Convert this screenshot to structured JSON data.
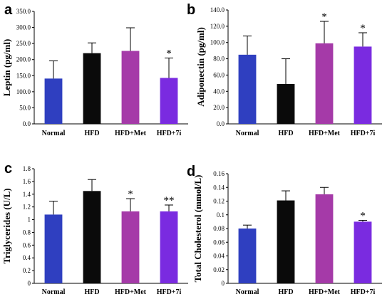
{
  "colors": {
    "Normal": "#2f3fc0",
    "HFD": "#0a0a0a",
    "HFD+Met": "#a53aa8",
    "HFD+7i": "#7a2be0"
  },
  "chart_data": [
    {
      "panel": "a",
      "type": "bar",
      "ylabel": "Leptin (pg/ml)",
      "categories": [
        "Normal",
        "HFD",
        "HFD+Met",
        "HFD+7i"
      ],
      "values": [
        141,
        220,
        227,
        143
      ],
      "errors": [
        55,
        32,
        72,
        62
      ],
      "significance": [
        "",
        "",
        "",
        "*"
      ],
      "ylim": [
        0,
        350
      ],
      "yticks": [
        "0.0",
        "50.0",
        "100.0",
        "150.0",
        "200.0",
        "250.0",
        "300.0",
        "350.0"
      ]
    },
    {
      "panel": "b",
      "type": "bar",
      "ylabel": "Adiponectin (pg/ml)",
      "categories": [
        "Normal",
        "HFD",
        "HFD+Met",
        "HFD+7i"
      ],
      "values": [
        85,
        49,
        99,
        95
      ],
      "errors": [
        23,
        31,
        27,
        17
      ],
      "significance": [
        "",
        "",
        "*",
        "*"
      ],
      "ylim": [
        0,
        140
      ],
      "yticks": [
        "0.0",
        "20.0",
        "40.0",
        "60.0",
        "80.0",
        "100.0",
        "120.0",
        "140.0"
      ]
    },
    {
      "panel": "c",
      "type": "bar",
      "ylabel": "Triglycerides (U/L)",
      "categories": [
        "Normal",
        "HFD",
        "HFD+Met",
        "HFD+7i"
      ],
      "values": [
        1.08,
        1.45,
        1.13,
        1.13
      ],
      "errors": [
        0.21,
        0.18,
        0.2,
        0.1
      ],
      "significance": [
        "",
        "",
        "*",
        "**"
      ],
      "ylim": [
        0,
        1.8
      ],
      "yticks": [
        "0",
        "0.2",
        "0.4",
        "0.6",
        "0.8",
        "1",
        "1.2",
        "1.4",
        "1.6",
        "1.8"
      ]
    },
    {
      "panel": "d",
      "type": "bar",
      "ylabel": "Total Cholesterol (mmol/L)",
      "categories": [
        "Normal",
        "HFD",
        "HFD+Met",
        "HFD+7i"
      ],
      "values": [
        0.08,
        0.121,
        0.13,
        0.09
      ],
      "errors": [
        0.005,
        0.014,
        0.01,
        0.002
      ],
      "significance": [
        "",
        "",
        "",
        "*"
      ],
      "ylim": [
        0,
        0.16
      ],
      "yticks": [
        "0",
        "0.02",
        "0.04",
        "0.06",
        "0.08",
        "0.1",
        "0.12",
        "0.14",
        "0.16"
      ]
    }
  ]
}
